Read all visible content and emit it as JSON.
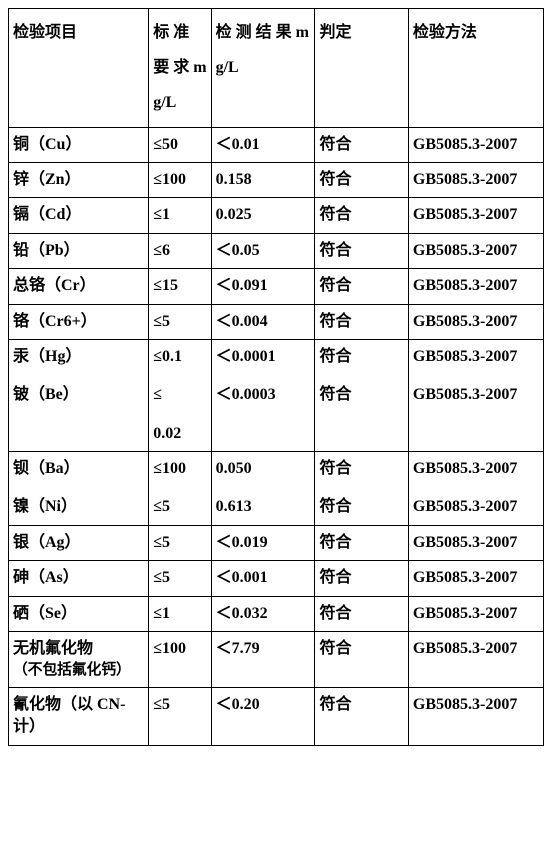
{
  "headers": {
    "item": "检验项目",
    "standard": "标 准 要 求 mg/L",
    "result": "检 测 结 果 mg/L",
    "judge": "判定",
    "method": "检验方法"
  },
  "rows": [
    {
      "item": "铜（Cu）",
      "standard": "≤50",
      "result": "＜0.01",
      "judge": "符合",
      "method": "GB5085.3-2007"
    },
    {
      "item": "锌（Zn）",
      "standard": "≤100",
      "result": "0.158",
      "judge": "符合",
      "method": "GB5085.3-2007"
    },
    {
      "item": "镉（Cd）",
      "standard": "≤1",
      "result": "0.025",
      "judge": "符合",
      "method": "GB5085.3-2007"
    },
    {
      "item": "铅（Pb）",
      "standard": "≤6",
      "result": "＜0.05",
      "judge": "符合",
      "method": "GB5085.3-2007"
    },
    {
      "item": "总铬（Cr）",
      "standard": "≤15",
      "result": "＜0.091",
      "judge": "符合",
      "method": "GB5085.3-2007"
    },
    {
      "item": "铬（Cr6+）",
      "standard": "≤5",
      "result": "＜0.004",
      "judge": "符合",
      "method": "GB5085.3-2007"
    }
  ],
  "mergedA": {
    "items": [
      "汞（Hg）",
      "铍（Be）"
    ],
    "standards": [
      "≤0.1",
      "≤",
      "0.02"
    ],
    "results": [
      "＜0.0001",
      "＜0.0003"
    ],
    "judges": [
      "符合",
      "符合"
    ],
    "methods": [
      "GB5085.3-2007",
      "GB5085.3-2007"
    ]
  },
  "mergedB": {
    "items": [
      "钡（Ba）",
      "镍（Ni）"
    ],
    "standards": [
      "≤100",
      "≤5"
    ],
    "results": [
      "0.050",
      "0.613"
    ],
    "judges": [
      "符合",
      "符合"
    ],
    "methods": [
      "GB5085.3-2007",
      "GB5085.3-2007"
    ]
  },
  "rows2": [
    {
      "item": "银（Ag）",
      "standard": "≤5",
      "result": "＜0.019",
      "judge": "符合",
      "method": "GB5085.3-2007"
    },
    {
      "item": "砷（As）",
      "standard": "≤5",
      "result": "＜0.001",
      "judge": "符合",
      "method": "GB5085.3-2007"
    },
    {
      "item": "硒（Se）",
      "standard": "≤1",
      "result": "＜0.032",
      "judge": "符合",
      "method": "GB5085.3-2007"
    }
  ],
  "fluoride": {
    "item_main": "无机氟化物",
    "item_sub": "（不包括氟化钙）",
    "standard": "≤100",
    "result": "＜7.79",
    "judge": "符合",
    "method": "GB5085.3-2007"
  },
  "cyanide": {
    "item": "氰化物（以 CN-计）",
    "standard": "≤5",
    "result": "＜0.20",
    "judge": "符合",
    "method": "GB5085.3-2007"
  }
}
